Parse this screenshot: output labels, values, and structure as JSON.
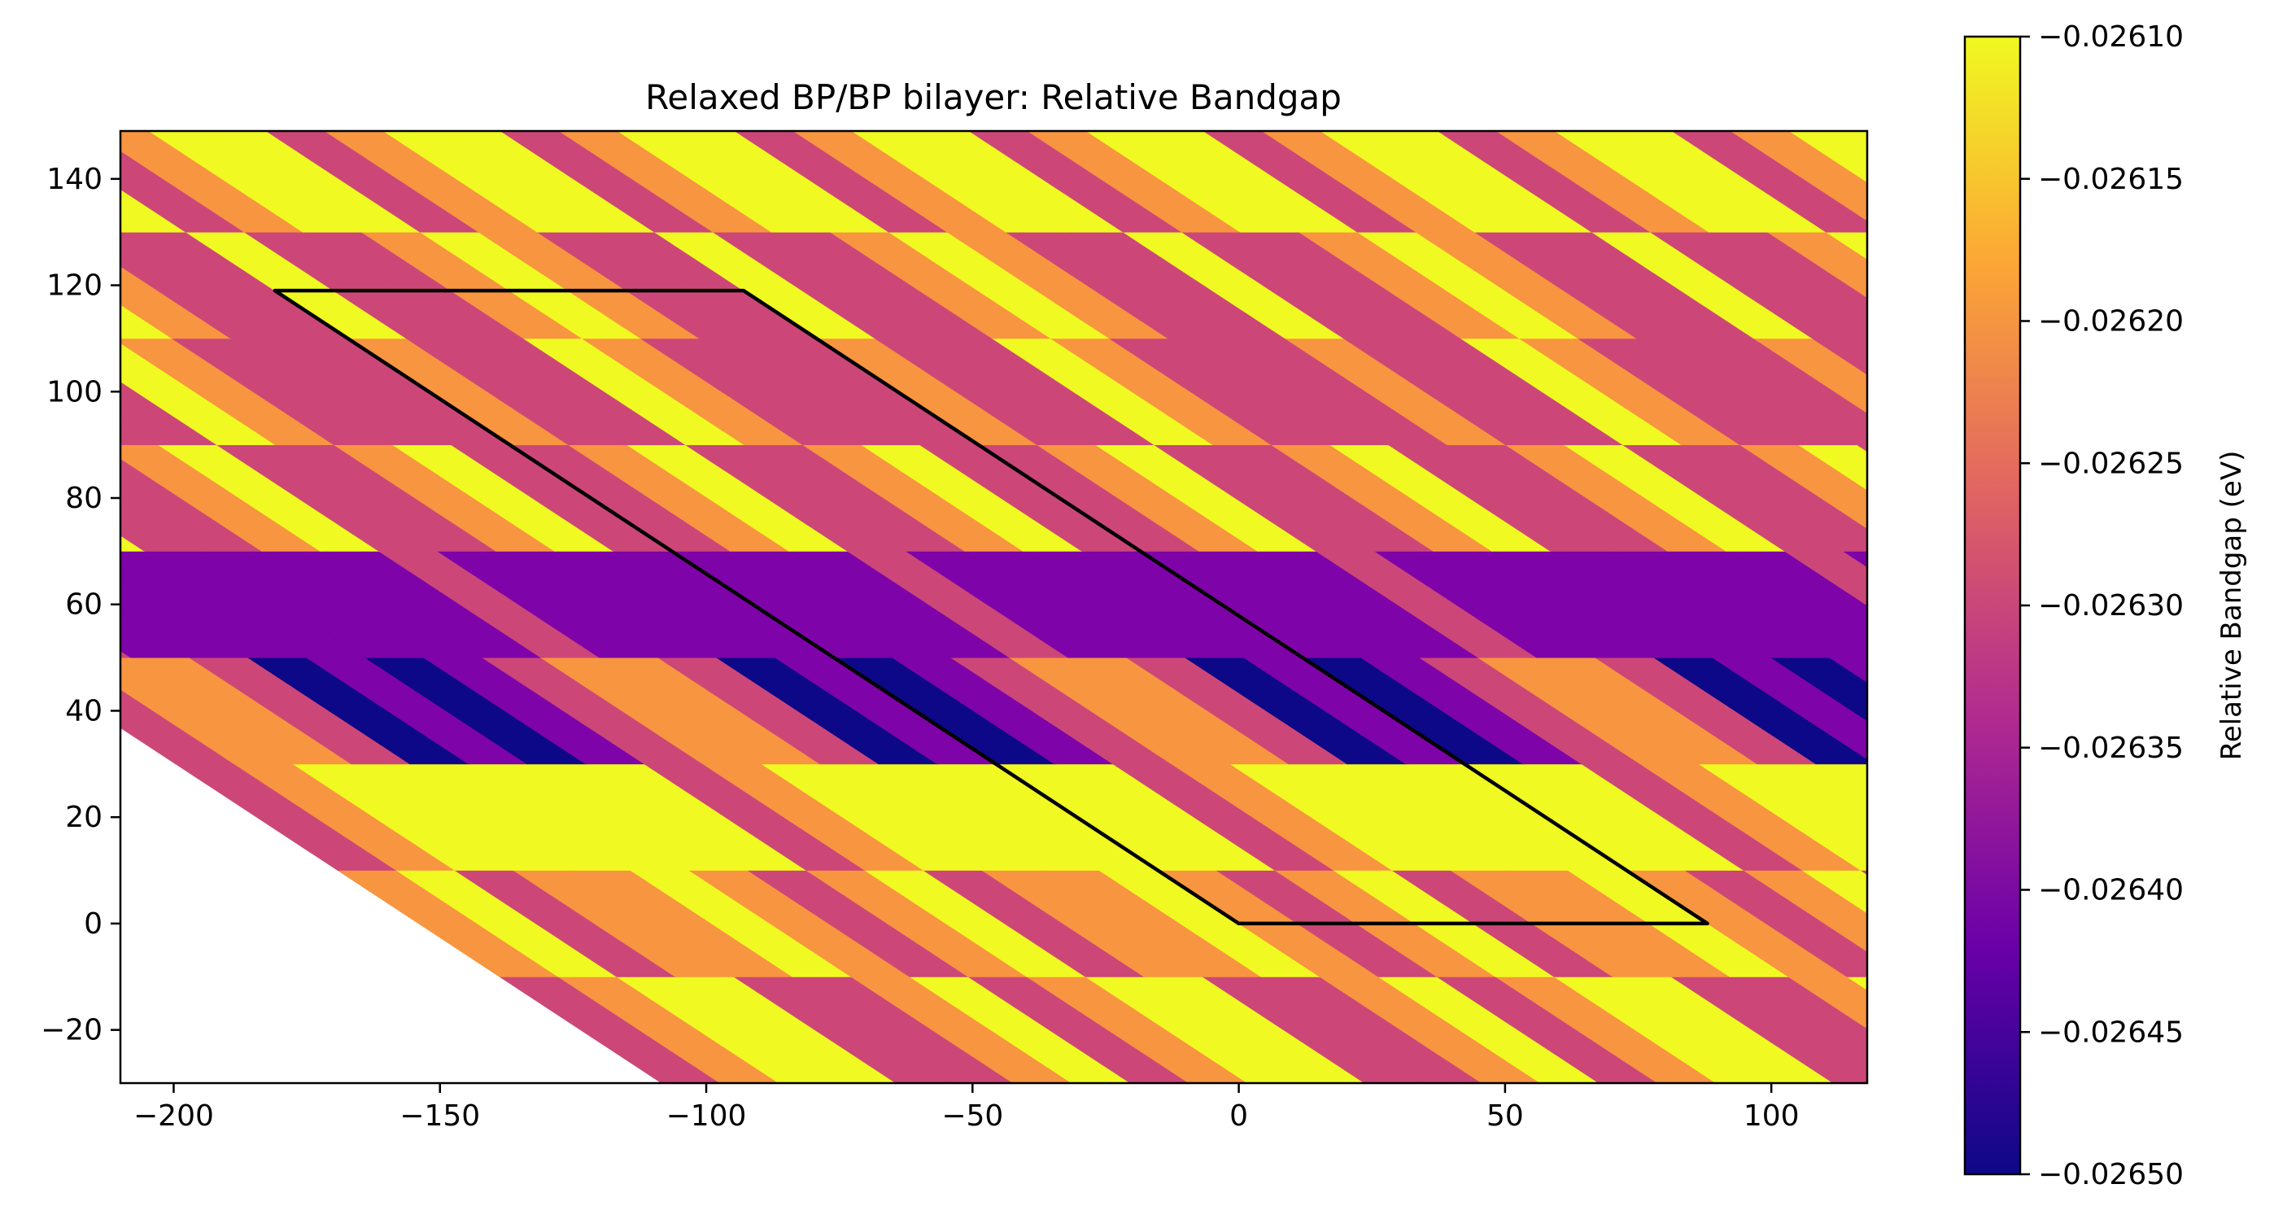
{
  "chart_data": {
    "type": "heatmap",
    "title": "Relaxed BP/BP bilayer: Relative Bandgap",
    "xlabel": "",
    "ylabel": "",
    "xlim": [
      -210,
      118
    ],
    "ylim": [
      -30,
      149
    ],
    "xticks": [
      {
        "value": -200,
        "label": "−200"
      },
      {
        "value": -150,
        "label": "−150"
      },
      {
        "value": -100,
        "label": "−100"
      },
      {
        "value": -50,
        "label": "−50"
      },
      {
        "value": 0,
        "label": "0"
      },
      {
        "value": 50,
        "label": "50"
      },
      {
        "value": 100,
        "label": "100"
      }
    ],
    "yticks": [
      {
        "value": -20,
        "label": "−20"
      },
      {
        "value": 0,
        "label": "0"
      },
      {
        "value": 20,
        "label": "20"
      },
      {
        "value": 40,
        "label": "40"
      },
      {
        "value": 60,
        "label": "60"
      },
      {
        "value": 80,
        "label": "80"
      },
      {
        "value": 100,
        "label": "100"
      },
      {
        "value": 120,
        "label": "120"
      },
      {
        "value": 140,
        "label": "140"
      }
    ],
    "grid": false,
    "colormap": "plasma",
    "colormap_stops": [
      "#0d0887",
      "#6a00a8",
      "#b12a90",
      "#e16462",
      "#fca636",
      "#f0f921"
    ],
    "level_colors": [
      "#0d0887",
      "#7e03a8",
      "#cc4778",
      "#f89540",
      "#f0f921"
    ],
    "level_values": [
      -0.02649,
      -0.0264,
      -0.02631,
      -0.0262,
      -0.0261
    ],
    "colorbar": {
      "label": "Relative Bandgap (eV)",
      "range": [
        -0.0265,
        -0.0261
      ],
      "ticks": [
        {
          "value": -0.0261,
          "label": "−0.02610"
        },
        {
          "value": -0.02615,
          "label": "−0.02615"
        },
        {
          "value": -0.0262,
          "label": "−0.02620"
        },
        {
          "value": -0.02625,
          "label": "−0.02625"
        },
        {
          "value": -0.0263,
          "label": "−0.02630"
        },
        {
          "value": -0.02635,
          "label": "−0.02635"
        },
        {
          "value": -0.0264,
          "label": "−0.02640"
        },
        {
          "value": -0.02645,
          "label": "−0.02645"
        },
        {
          "value": -0.0265,
          "label": "−0.02650"
        }
      ]
    },
    "lattice": {
      "a1": [
        88,
        0
      ],
      "a2": [
        -181,
        119
      ],
      "u_range": [
        -1.66,
        4.42
      ],
      "rows": [
        {
          "y0": -30,
          "y1": -10,
          "pattern": [
            3,
            4,
            2,
            3,
            4,
            4,
            2,
            2
          ]
        },
        {
          "y0": -10,
          "y1": 10,
          "pattern": [
            3,
            2,
            3,
            4,
            2,
            3,
            3,
            4
          ]
        },
        {
          "y0": 10,
          "y1": 30,
          "pattern": [
            4,
            4,
            2,
            3,
            4,
            4,
            4,
            4
          ]
        },
        {
          "y0": 30,
          "y1": 50,
          "pattern": [
            0,
            1,
            2,
            3,
            3,
            2,
            0,
            1
          ]
        },
        {
          "y0": 50,
          "y1": 70,
          "pattern": [
            1,
            1,
            1,
            2,
            1,
            1,
            1,
            1
          ]
        },
        {
          "y0": 70,
          "y1": 90,
          "pattern": [
            2,
            3,
            4,
            2,
            2,
            3,
            4,
            2
          ]
        },
        {
          "y0": 90,
          "y1": 110,
          "pattern": [
            3,
            2,
            2,
            4,
            3,
            2,
            2,
            2
          ]
        },
        {
          "y0": 110,
          "y1": 130,
          "pattern": [
            4,
            2,
            2,
            3,
            4,
            3,
            2,
            2
          ]
        },
        {
          "y0": 130,
          "y1": 149,
          "pattern": [
            2,
            3,
            4,
            4,
            2,
            3,
            4,
            4
          ]
        }
      ]
    },
    "cell_outline": [
      [
        0,
        0
      ],
      [
        88,
        0
      ],
      [
        -93,
        119
      ],
      [
        -181,
        119
      ]
    ],
    "outline_color": "#000000"
  }
}
